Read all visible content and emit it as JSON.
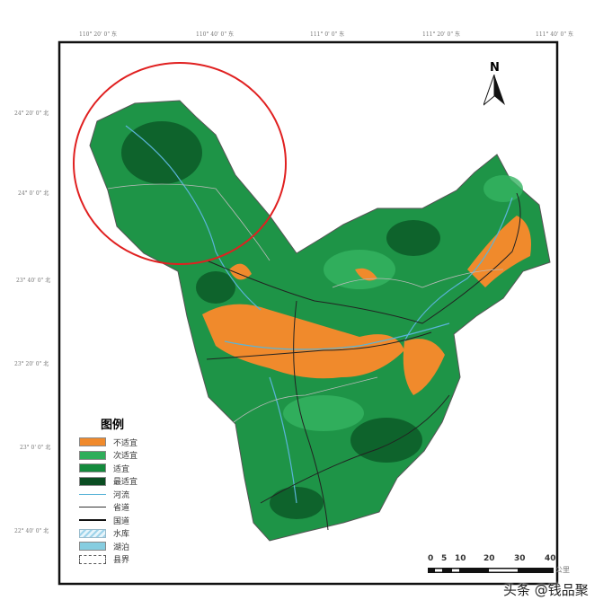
{
  "axes": {
    "top_labels": [
      "110° 20' 0\" 东",
      "110° 40' 0\" 东",
      "111° 0' 0\" 东",
      "111° 20' 0\" 东",
      "111° 40' 0\" 东"
    ],
    "left_labels": [
      "24° 20' 0\" 北",
      "24° 0' 0\" 北",
      "23° 40' 0\" 北",
      "23° 20' 0\" 北",
      "23° 0' 0\" 北",
      "22° 40' 0\" 北"
    ]
  },
  "north_arrow": {
    "label": "N",
    "icon": "north-arrow-icon"
  },
  "legend": {
    "title": "图例",
    "items": [
      {
        "label": "不适宜",
        "color": "#f08a2c",
        "kind": "fill"
      },
      {
        "label": "次适宜",
        "color": "#2fae5a",
        "kind": "fill"
      },
      {
        "label": "适宜",
        "color": "#138a3c",
        "kind": "fill"
      },
      {
        "label": "最适宜",
        "color": "#0a4d22",
        "kind": "fill"
      },
      {
        "label": "河流",
        "color": "#5ab4d8",
        "kind": "line"
      },
      {
        "label": "省道",
        "color": "#333333",
        "kind": "line"
      },
      {
        "label": "国道",
        "color": "#111111",
        "kind": "line-thick"
      },
      {
        "label": "水库",
        "color": "#9dd3ea",
        "kind": "hatch"
      },
      {
        "label": "湖泊",
        "color": "#86cde0",
        "kind": "fill"
      },
      {
        "label": "县界",
        "color": "#555555",
        "kind": "dashed"
      }
    ]
  },
  "scale_bar": {
    "ticks": [
      "0",
      "5",
      "10",
      "20",
      "30",
      "40"
    ],
    "unit": "公里"
  },
  "highlight_color": "#e02020",
  "watermark": "头条 @钱品聚"
}
